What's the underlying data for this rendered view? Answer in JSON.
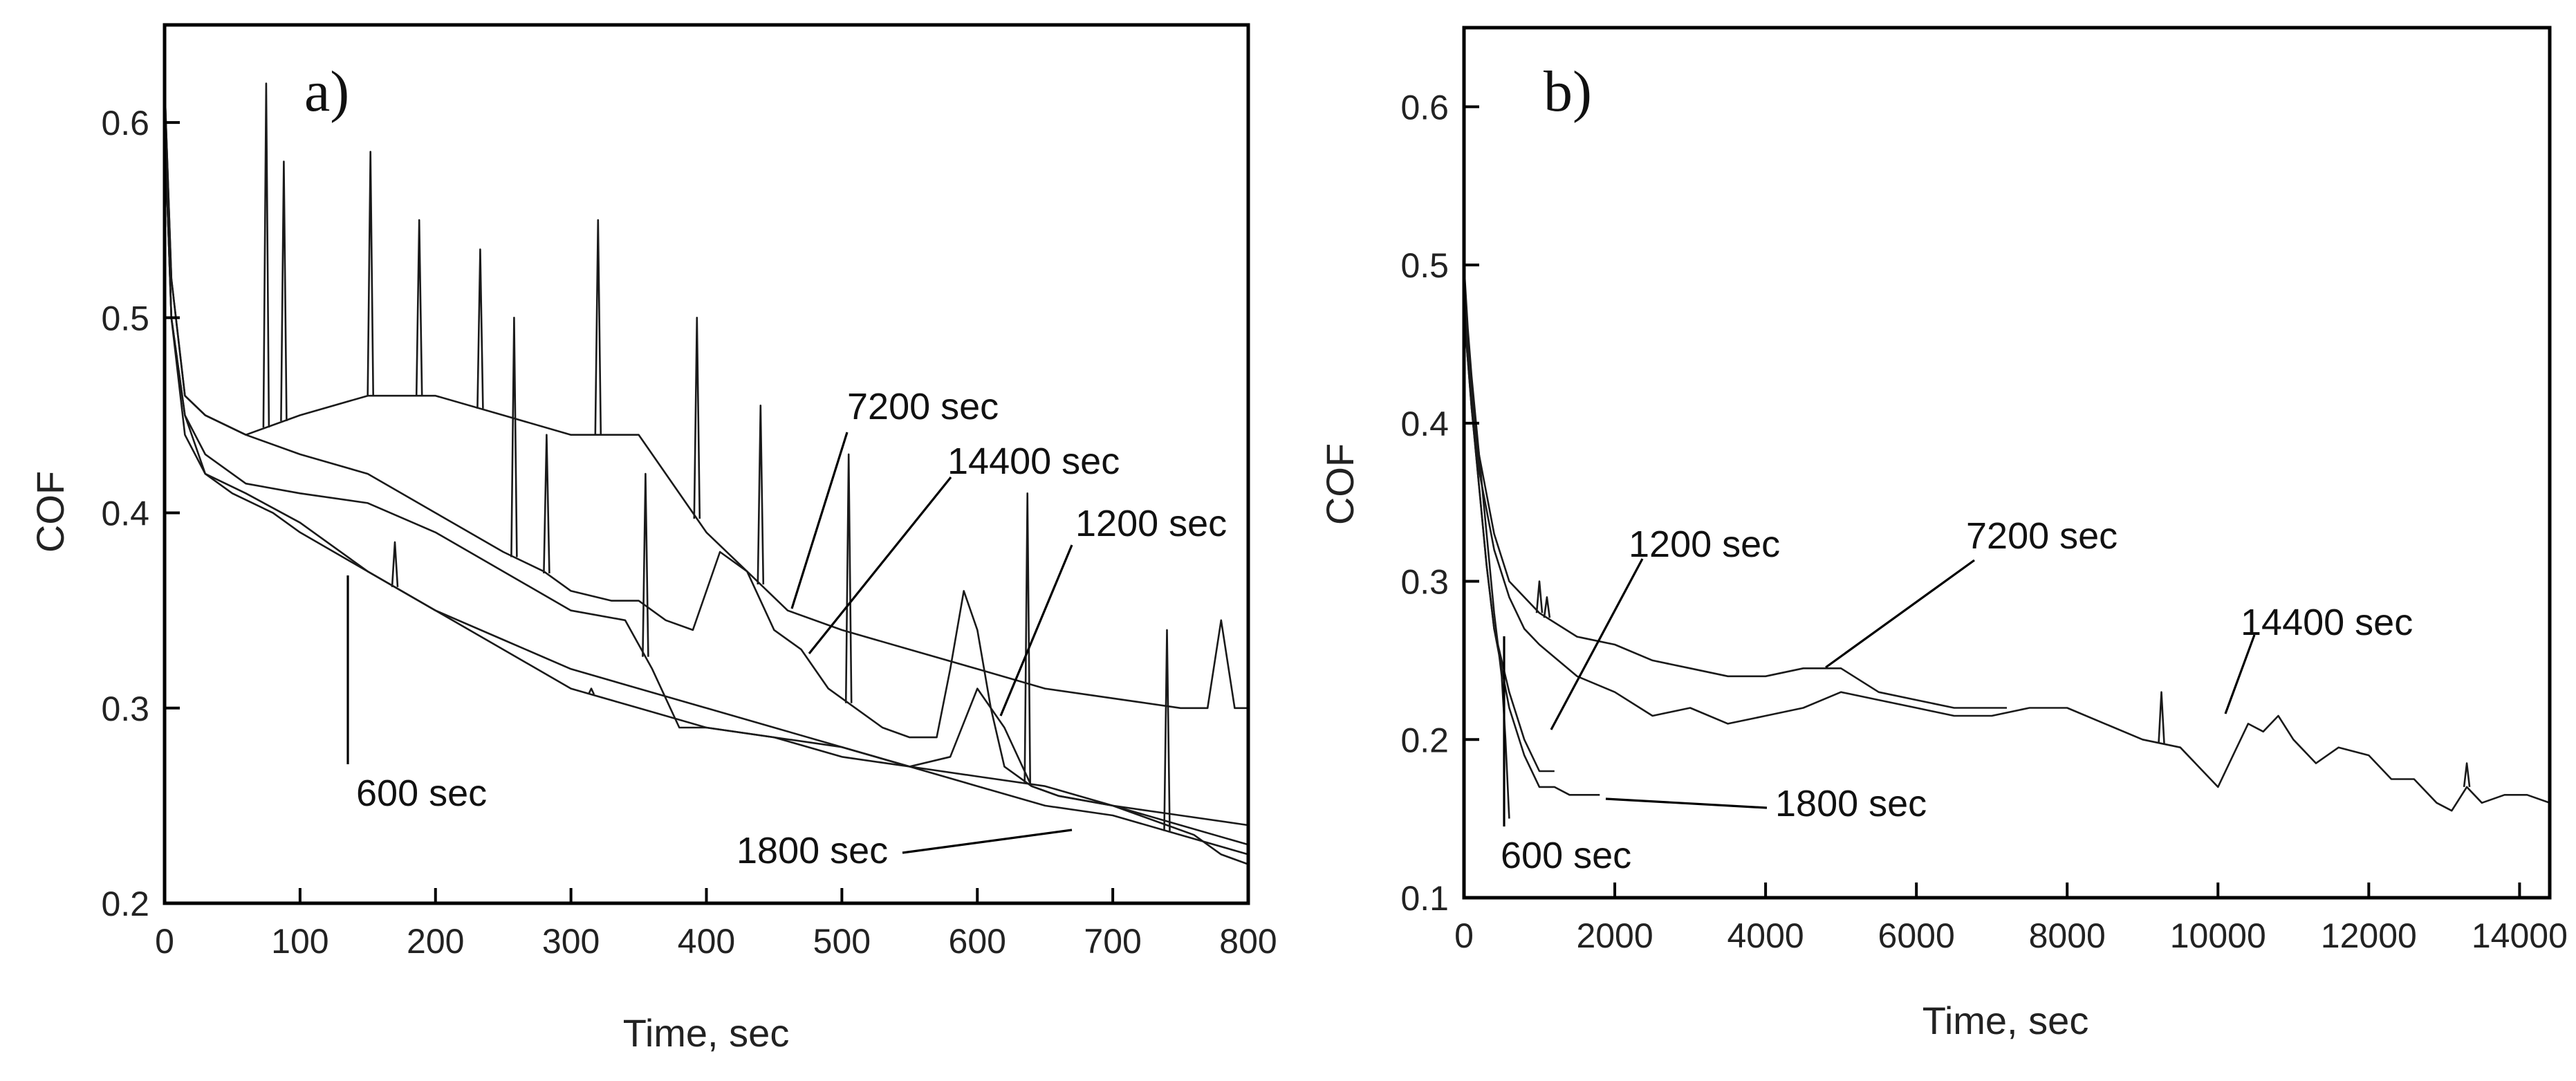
{
  "chart_data": [
    {
      "type": "line",
      "panel_label": "a)",
      "xlabel": "Time, sec",
      "ylabel": "COF",
      "xlim": [
        0,
        800
      ],
      "ylim": [
        0.2,
        0.65
      ],
      "xticks": [
        0,
        100,
        200,
        300,
        400,
        500,
        600,
        700,
        800
      ],
      "yticks": [
        0.2,
        0.3,
        0.4,
        0.5,
        0.6
      ],
      "series": [
        {
          "name": "600 sec",
          "x": [
            0,
            5,
            15,
            30,
            50,
            80,
            100,
            150,
            200,
            250,
            300,
            350,
            400,
            450,
            500,
            550,
            600,
            650,
            700,
            750,
            800
          ],
          "y": [
            0.6,
            0.5,
            0.44,
            0.42,
            0.41,
            0.4,
            0.39,
            0.37,
            0.35,
            0.335,
            0.32,
            0.31,
            0.3,
            0.29,
            0.28,
            0.27,
            0.265,
            0.26,
            0.25,
            0.24,
            0.23
          ],
          "spikes": []
        },
        {
          "name": "1200 sec",
          "x": [
            0,
            5,
            15,
            30,
            60,
            100,
            150,
            200,
            250,
            300,
            350,
            400,
            450,
            500,
            550,
            580,
            600,
            620,
            640,
            660,
            700,
            750,
            800
          ],
          "y": [
            0.6,
            0.5,
            0.45,
            0.42,
            0.41,
            0.395,
            0.37,
            0.35,
            0.33,
            0.31,
            0.3,
            0.29,
            0.285,
            0.28,
            0.27,
            0.275,
            0.31,
            0.29,
            0.26,
            0.255,
            0.25,
            0.245,
            0.24
          ],
          "spikes": [
            [
              170,
              0.385
            ],
            [
              315,
              0.31
            ]
          ]
        },
        {
          "name": "1800 sec",
          "x": [
            0,
            5,
            15,
            30,
            60,
            100,
            150,
            200,
            250,
            300,
            340,
            360,
            380,
            400,
            450,
            500,
            550,
            600,
            650,
            700,
            750,
            800
          ],
          "y": [
            0.6,
            0.5,
            0.45,
            0.43,
            0.415,
            0.41,
            0.405,
            0.39,
            0.37,
            0.35,
            0.345,
            0.32,
            0.29,
            0.29,
            0.285,
            0.275,
            0.27,
            0.26,
            0.25,
            0.245,
            0.235,
            0.225
          ],
          "spikes": [
            [
              355,
              0.42
            ],
            [
              740,
              0.34
            ]
          ]
        },
        {
          "name": "7200 sec",
          "x": [
            0,
            5,
            15,
            30,
            60,
            100,
            150,
            200,
            250,
            300,
            350,
            380,
            400,
            430,
            460,
            500,
            550,
            600,
            650,
            700,
            750,
            770,
            780,
            790,
            800
          ],
          "y": [
            0.62,
            0.52,
            0.46,
            0.45,
            0.44,
            0.45,
            0.46,
            0.46,
            0.45,
            0.44,
            0.44,
            0.41,
            0.39,
            0.37,
            0.35,
            0.34,
            0.33,
            0.32,
            0.31,
            0.305,
            0.3,
            0.3,
            0.345,
            0.3,
            0.3
          ],
          "spikes": [
            [
              75,
              0.62
            ],
            [
              88,
              0.58
            ],
            [
              152,
              0.585
            ],
            [
              188,
              0.55
            ],
            [
              233,
              0.535
            ],
            [
              320,
              0.55
            ],
            [
              393,
              0.5
            ],
            [
              440,
              0.455
            ]
          ]
        },
        {
          "name": "14400 sec",
          "x": [
            0,
            5,
            15,
            30,
            60,
            100,
            150,
            200,
            250,
            280,
            300,
            330,
            350,
            370,
            390,
            410,
            430,
            450,
            470,
            490,
            510,
            530,
            550,
            570,
            580,
            590,
            600,
            610,
            620,
            640,
            660,
            700,
            720,
            740,
            760,
            780,
            800
          ],
          "y": [
            0.62,
            0.52,
            0.46,
            0.45,
            0.44,
            0.43,
            0.42,
            0.4,
            0.38,
            0.37,
            0.36,
            0.355,
            0.355,
            0.345,
            0.34,
            0.38,
            0.37,
            0.34,
            0.33,
            0.31,
            0.3,
            0.29,
            0.285,
            0.285,
            0.32,
            0.36,
            0.34,
            0.3,
            0.27,
            0.26,
            0.255,
            0.25,
            0.245,
            0.24,
            0.235,
            0.225,
            0.22
          ],
          "spikes": [
            [
              258,
              0.5
            ],
            [
              282,
              0.44
            ],
            [
              505,
              0.43
            ],
            [
              637,
              0.41
            ]
          ]
        }
      ],
      "annotations": [
        "7200 sec",
        "14400 sec",
        "1200 sec",
        "600 sec",
        "1800 sec"
      ]
    },
    {
      "type": "line",
      "panel_label": "b)",
      "xlabel": "Time, sec",
      "ylabel": "COF",
      "xlim": [
        0,
        14400
      ],
      "ylim": [
        0.1,
        0.65
      ],
      "xticks": [
        0,
        2000,
        4000,
        6000,
        8000,
        10000,
        12000,
        14000
      ],
      "yticks": [
        0.1,
        0.2,
        0.3,
        0.4,
        0.5,
        0.6
      ],
      "series": [
        {
          "name": "600 sec",
          "x": [
            0,
            50,
            100,
            200,
            300,
            400,
            500,
            550,
            600
          ],
          "y": [
            0.48,
            0.45,
            0.42,
            0.38,
            0.33,
            0.28,
            0.24,
            0.2,
            0.15
          ],
          "spikes": []
        },
        {
          "name": "1200 sec",
          "x": [
            0,
            50,
            100,
            200,
            300,
            400,
            600,
            800,
            1000,
            1200
          ],
          "y": [
            0.47,
            0.44,
            0.41,
            0.36,
            0.31,
            0.27,
            0.23,
            0.2,
            0.18,
            0.18
          ],
          "spikes": []
        },
        {
          "name": "1800 sec",
          "x": [
            0,
            50,
            100,
            200,
            300,
            400,
            600,
            800,
            1000,
            1200,
            1400,
            1600,
            1800
          ],
          "y": [
            0.47,
            0.44,
            0.41,
            0.36,
            0.31,
            0.27,
            0.22,
            0.19,
            0.17,
            0.17,
            0.165,
            0.165,
            0.165
          ],
          "spikes": []
        },
        {
          "name": "7200 sec",
          "x": [
            0,
            50,
            100,
            200,
            400,
            600,
            1000,
            1500,
            2000,
            2500,
            3000,
            3500,
            4000,
            4500,
            5000,
            5500,
            6000,
            6500,
            7000,
            7200
          ],
          "y": [
            0.5,
            0.46,
            0.43,
            0.38,
            0.33,
            0.3,
            0.28,
            0.265,
            0.26,
            0.25,
            0.245,
            0.24,
            0.24,
            0.245,
            0.245,
            0.23,
            0.225,
            0.22,
            0.22,
            0.22
          ],
          "spikes": [
            [
              1000,
              0.3
            ],
            [
              1100,
              0.29
            ]
          ]
        },
        {
          "name": "14400 sec",
          "x": [
            0,
            50,
            100,
            200,
            400,
            600,
            800,
            1000,
            1500,
            2000,
            2500,
            3000,
            3500,
            4000,
            4500,
            5000,
            5500,
            6000,
            6500,
            7000,
            7500,
            8000,
            8500,
            9000,
            9500,
            9800,
            10000,
            10200,
            10400,
            10600,
            10800,
            11000,
            11300,
            11600,
            12000,
            12300,
            12600,
            12900,
            13100,
            13300,
            13500,
            13800,
            14100,
            14400
          ],
          "y": [
            0.48,
            0.45,
            0.42,
            0.37,
            0.32,
            0.29,
            0.27,
            0.26,
            0.24,
            0.23,
            0.215,
            0.22,
            0.21,
            0.215,
            0.22,
            0.23,
            0.225,
            0.22,
            0.215,
            0.215,
            0.22,
            0.22,
            0.21,
            0.2,
            0.195,
            0.18,
            0.17,
            0.19,
            0.21,
            0.205,
            0.215,
            0.2,
            0.185,
            0.195,
            0.19,
            0.175,
            0.175,
            0.16,
            0.155,
            0.17,
            0.16,
            0.165,
            0.165,
            0.16
          ],
          "spikes": [
            [
              9250,
              0.23
            ],
            [
              13300,
              0.185
            ]
          ]
        }
      ],
      "annotations": [
        "1200 sec",
        "7200 sec",
        "14400 sec",
        "1800 sec",
        "600 sec"
      ]
    }
  ]
}
